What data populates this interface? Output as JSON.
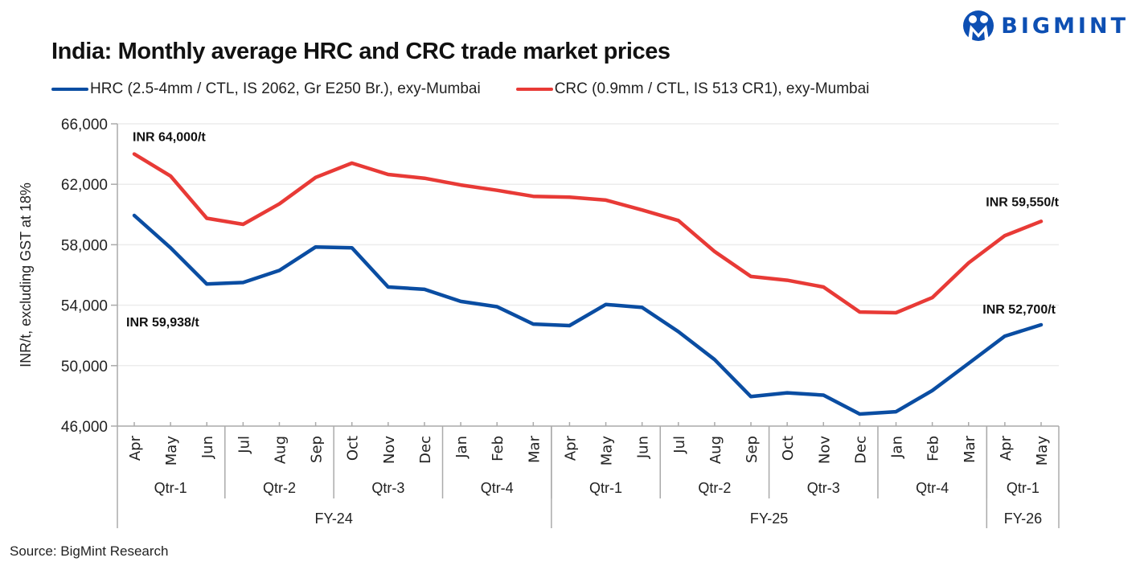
{
  "header": {
    "title": "India: Monthly average HRC and CRC trade market prices",
    "brand": "BIGMINT",
    "brand_color": "#0d4fb3"
  },
  "legend": [
    {
      "label": "HRC (2.5-4mm / CTL, IS 2062, Gr E250 Br.), exy-Mumbai",
      "color": "#0a4da2"
    },
    {
      "label": "CRC (0.9mm / CTL, IS 513 CR1), exy-Mumbai",
      "color": "#e83a36"
    }
  ],
  "footer": {
    "source": "Source: BigMint Research"
  },
  "chart_data": {
    "type": "line",
    "title": "India: Monthly average HRC and CRC trade market prices",
    "xlabel": "",
    "ylabel": "INR/t, excluding GST at 18%",
    "ylim": [
      46000,
      66000
    ],
    "yticks": [
      46000,
      50000,
      54000,
      58000,
      62000,
      66000
    ],
    "ytick_labels": [
      "46,000",
      "50,000",
      "54,000",
      "58,000",
      "62,000",
      "66,000"
    ],
    "grid": true,
    "legend_position": "top-left",
    "x": [
      "Apr",
      "May",
      "Jun",
      "Jul",
      "Aug",
      "Sep",
      "Oct",
      "Nov",
      "Dec",
      "Jan",
      "Feb",
      "Mar",
      "Apr",
      "May",
      "Jun",
      "Jul",
      "Aug",
      "Sep",
      "Oct",
      "Nov",
      "Dec",
      "Jan",
      "Feb",
      "Mar",
      "Apr",
      "May"
    ],
    "quarters": [
      {
        "label": "Qtr-1",
        "span": 3
      },
      {
        "label": "Qtr-2",
        "span": 3
      },
      {
        "label": "Qtr-3",
        "span": 3
      },
      {
        "label": "Qtr-4",
        "span": 3
      },
      {
        "label": "Qtr-1",
        "span": 3
      },
      {
        "label": "Qtr-2",
        "span": 3
      },
      {
        "label": "Qtr-3",
        "span": 3
      },
      {
        "label": "Qtr-4",
        "span": 3
      },
      {
        "label": "Qtr-1",
        "span": 2
      }
    ],
    "fiscal_years": [
      {
        "label": "FY-24",
        "span": 12
      },
      {
        "label": "FY-25",
        "span": 12
      },
      {
        "label": "FY-26",
        "span": 2
      }
    ],
    "series": [
      {
        "name": "HRC (2.5-4mm / CTL, IS 2062, Gr E250 Br.), exy-Mumbai",
        "color": "#0a4da2",
        "values": [
          59938,
          57800,
          55400,
          55500,
          56300,
          57850,
          57800,
          55200,
          55050,
          54250,
          53900,
          52750,
          52650,
          54050,
          53850,
          52250,
          50400,
          47950,
          48200,
          48050,
          46800,
          46950,
          48350,
          50150,
          51950,
          52700
        ]
      },
      {
        "name": "CRC (0.9mm / CTL, IS 513 CR1), exy-Mumbai",
        "color": "#e83a36",
        "values": [
          64000,
          62550,
          59750,
          59350,
          60700,
          62450,
          63400,
          62650,
          62400,
          61950,
          61600,
          61200,
          61150,
          60950,
          60300,
          59600,
          57550,
          55900,
          55650,
          55200,
          53550,
          53500,
          54500,
          56800,
          58600,
          59550
        ]
      }
    ],
    "annotations": [
      {
        "text": "INR 64,000/t",
        "series": 1,
        "index": 0
      },
      {
        "text": "INR 59,938/t",
        "series": 0,
        "index": 0
      },
      {
        "text": "INR 59,550/t",
        "series": 1,
        "index": 25
      },
      {
        "text": "INR 52,700/t",
        "series": 0,
        "index": 25
      }
    ]
  }
}
